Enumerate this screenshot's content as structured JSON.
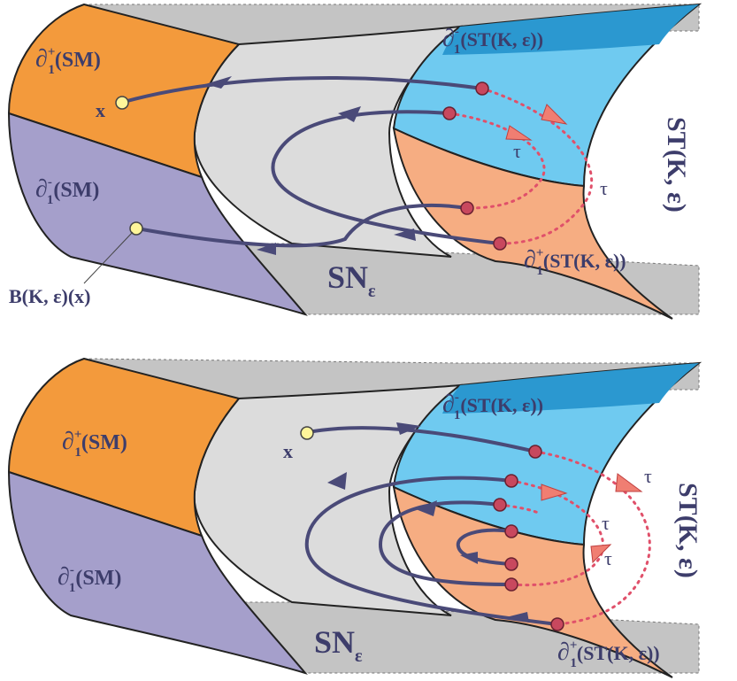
{
  "colors": {
    "orange": "#f39a3c",
    "lavender": "#a59fcb",
    "light_gray": "#dcdcdc",
    "dark_gray": "#bdbdbd",
    "blue_dark": "#2b98d0",
    "blue_light": "#6fcaf0",
    "salmon": "#f6ad82",
    "trajectory": "#4a4a78",
    "dotted_red": "#e0506a",
    "arrow_red": "#f07e72",
    "point_yellow": "#fff59a",
    "point_red": "#c8485e"
  },
  "top": {
    "label_sm_plus_sym": "∂",
    "label_sm_plus_sub": "1",
    "label_sm_plus_sup": "+",
    "label_sm_plus_text": "(SM)",
    "label_sm_minus_sym": "∂",
    "label_sm_minus_sub": "1",
    "label_sm_minus_sup": "-",
    "label_sm_minus_text": "(SM)",
    "label_st_minus_sym": "∂",
    "label_st_minus_sub": "1",
    "label_st_minus_sup": "-",
    "label_st_minus_text": "(ST(K, ε))",
    "label_st_plus_sym": "∂",
    "label_st_plus_sub": "1",
    "label_st_plus_sup": "+",
    "label_st_plus_text": "(ST(K, ε))",
    "label_x": "x",
    "label_tau_1": "τ",
    "label_tau_2": "τ",
    "label_sn": "SN",
    "label_sn_sub": "ε",
    "label_st_vertical": "ST(K, ε)",
    "label_b": "B(K, ε)(x)"
  },
  "bottom": {
    "label_sm_plus_sym": "∂",
    "label_sm_plus_sub": "1",
    "label_sm_plus_sup": "+",
    "label_sm_plus_text": "(SM)",
    "label_sm_minus_sym": "∂",
    "label_sm_minus_sub": "1",
    "label_sm_minus_sup": "-",
    "label_sm_minus_text": "(SM)",
    "label_st_minus_sym": "∂",
    "label_st_minus_sub": "1",
    "label_st_minus_sup": "-",
    "label_st_minus_text": "(ST(K, ε))",
    "label_st_plus_sym": "∂",
    "label_st_plus_sub": "1",
    "label_st_plus_sup": "+",
    "label_st_plus_text": "(ST(K, ε))",
    "label_x": "x",
    "label_tau_1": "τ",
    "label_tau_2": "τ",
    "label_tau_3": "τ",
    "label_sn": "SN",
    "label_sn_sub": "ε",
    "label_st_vertical": "ST(K, ε)"
  }
}
